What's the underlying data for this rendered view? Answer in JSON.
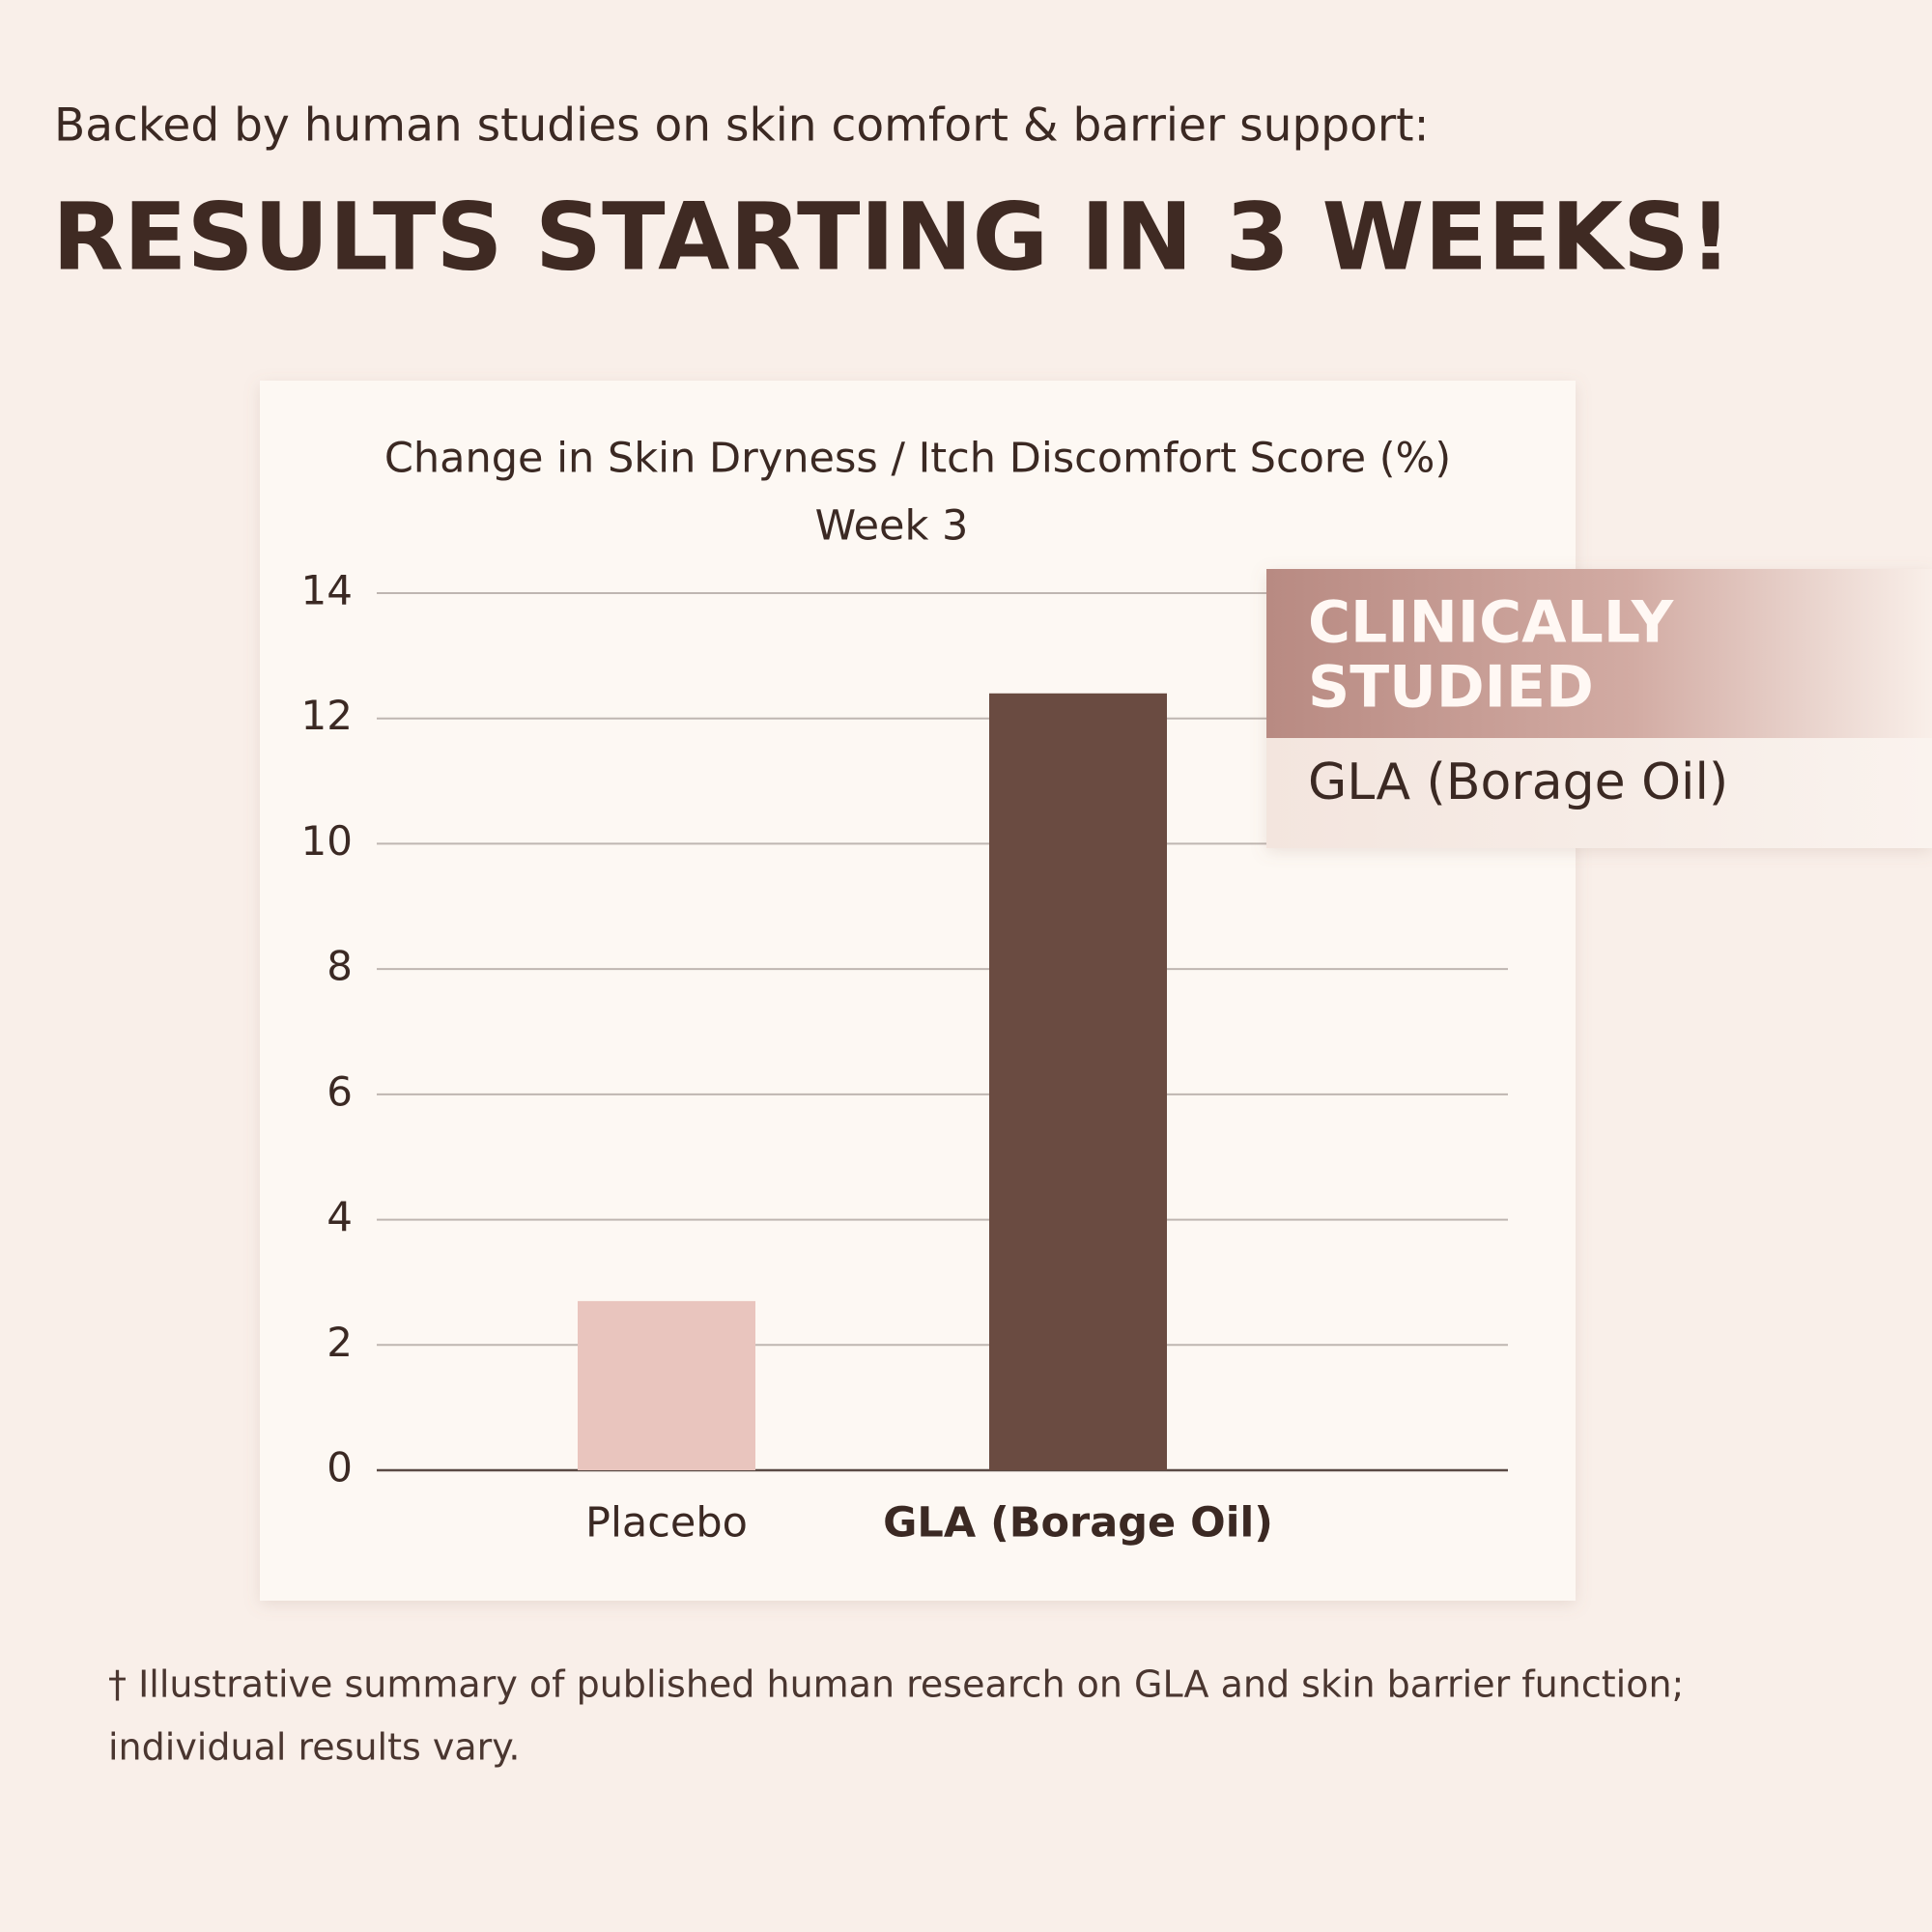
{
  "header": {
    "subtitle": "Backed by human studies on skin comfort & barrier support:",
    "title": "RESULTS STARTING IN 3 WEEKS!"
  },
  "chart_data": {
    "type": "bar",
    "title": "Change in Skin Dryness / Itch Discomfort Score (%)",
    "subtitle": "Week 3",
    "categories": [
      "Placebo",
      "GLA (Borage Oil)"
    ],
    "values": [
      2.7,
      12.4
    ],
    "colors": [
      "#e9c5be",
      "#6a4b41"
    ],
    "ylim": [
      0,
      14
    ],
    "yticks": [
      0,
      2,
      4,
      6,
      8,
      10,
      12,
      14
    ],
    "grid": true
  },
  "badge": {
    "title_lines": [
      "CLINICALLY",
      "STUDIED"
    ],
    "label": "GLA (Borage Oil)"
  },
  "footnote": [
    "† Illustrative summary of published human research on GLA and skin barrier function;",
    "individual results vary."
  ]
}
